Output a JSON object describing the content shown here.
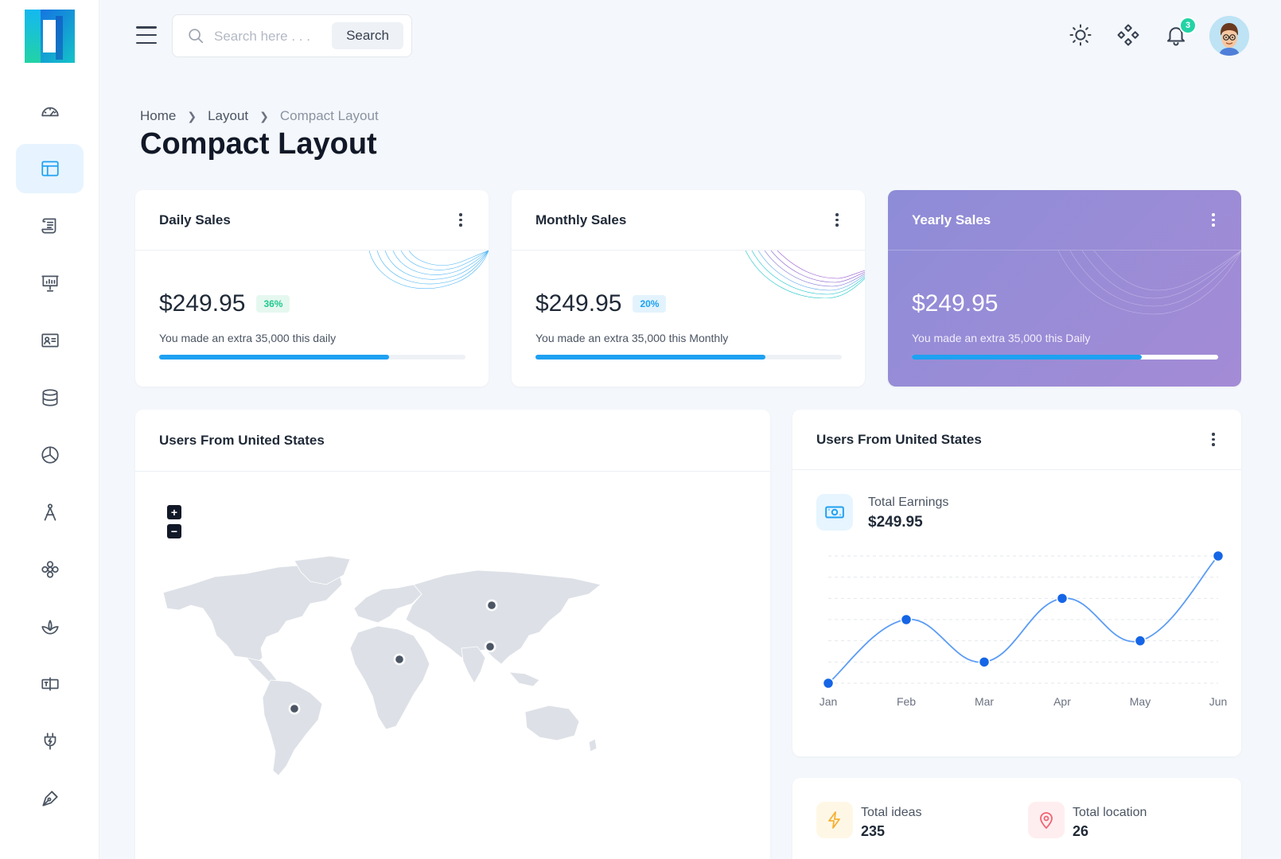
{
  "header": {
    "search_placeholder": "Search here . . .",
    "search_button": "Search",
    "notification_count": "3"
  },
  "sidebar": {
    "items": [
      {
        "icon": "gauge-icon"
      },
      {
        "icon": "layout-icon",
        "active": true
      },
      {
        "icon": "scroll-icon"
      },
      {
        "icon": "presentation-icon"
      },
      {
        "icon": "id-card-icon"
      },
      {
        "icon": "database-icon"
      },
      {
        "icon": "pie-chart-icon"
      },
      {
        "icon": "compass-icon"
      },
      {
        "icon": "flower-icon"
      },
      {
        "icon": "lotus-icon"
      },
      {
        "icon": "switch-icon"
      },
      {
        "icon": "plug-icon"
      },
      {
        "icon": "pen-tool-icon"
      }
    ]
  },
  "breadcrumb": {
    "home": "Home",
    "layout": "Layout",
    "current": "Compact Layout"
  },
  "page_title": "Compact Layout",
  "sales_cards": [
    {
      "title": "Daily Sales",
      "amount": "$249.95",
      "badge": "36%",
      "badge_color": "#22c98f",
      "badge_bg": "#e5f8f0",
      "description": "You made an extra 35,000 this daily",
      "progress": 0.75
    },
    {
      "title": "Monthly Sales",
      "amount": "$249.95",
      "badge": "20%",
      "badge_color": "#1ea1f2",
      "badge_bg": "#e3f3fd",
      "description": "You made an extra 35,000 this Monthly",
      "progress": 0.75
    },
    {
      "title": "Yearly Sales",
      "amount": "$249.95",
      "badge": "",
      "description": "You made an extra 35,000 this Daily",
      "progress": 0.75
    }
  ],
  "map_card": {
    "title": "Users From United States",
    "zoom_in": "+",
    "zoom_out": "−"
  },
  "chart_card": {
    "title": "Users From United States",
    "earnings_label": "Total Earnings",
    "earnings_value": "$249.95"
  },
  "chart_data": {
    "type": "line",
    "categories": [
      "Jan",
      "Feb",
      "Mar",
      "Apr",
      "May",
      "Jun"
    ],
    "series": [
      {
        "values": [
          0,
          30,
          10,
          40,
          20,
          60
        ]
      }
    ],
    "ylim": [
      0,
      60
    ],
    "grid": true,
    "line_color": "#5b9cf5",
    "point_color": "#1565e6"
  },
  "stats": {
    "ideas_label": "Total ideas",
    "ideas_value": "235",
    "location_label": "Total location",
    "location_value": "26"
  },
  "colors": {
    "accent": "#1ea1f2",
    "purple_start": "#8e8cd7",
    "purple_end": "#a48bd6"
  }
}
